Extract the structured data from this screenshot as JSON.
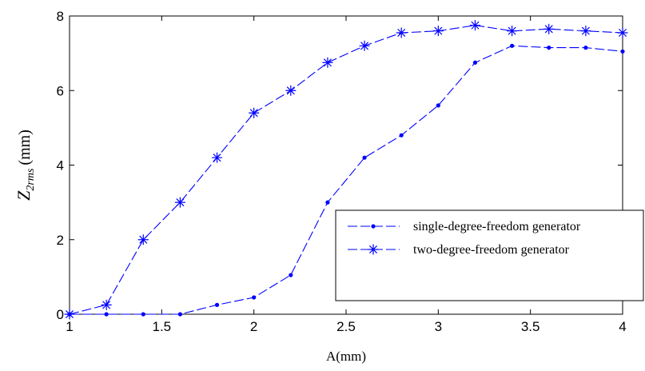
{
  "chart_data": {
    "type": "line",
    "xlabel": "A(mm)",
    "ylabel": {
      "main": "Z",
      "sub": "2rms",
      "unit": "(mm)"
    },
    "xlim": [
      1,
      4
    ],
    "ylim": [
      0,
      8
    ],
    "xticks": [
      "1",
      "1.5",
      "2",
      "2.5",
      "3",
      "3.5",
      "4"
    ],
    "yticks": [
      "0",
      "2",
      "4",
      "6",
      "8"
    ],
    "grid": false,
    "legend_position": "middle-right",
    "line_color": "#0000ff",
    "series": [
      {
        "name": "single-degree-freedom  generator",
        "marker": "dot",
        "x": [
          1,
          1.2,
          1.4,
          1.6,
          1.8,
          2.0,
          2.2,
          2.4,
          2.6,
          2.8,
          3.0,
          3.2,
          3.4,
          3.6,
          3.8,
          4.0
        ],
        "y": [
          0,
          0,
          0,
          0,
          0.25,
          0.45,
          1.05,
          3.0,
          4.2,
          4.8,
          5.6,
          6.75,
          7.2,
          7.15,
          7.15,
          7.05
        ]
      },
      {
        "name": "two-degree-freedom  generator",
        "marker": "star",
        "x": [
          1,
          1.2,
          1.4,
          1.6,
          1.8,
          2.0,
          2.2,
          2.4,
          2.6,
          2.8,
          3.0,
          3.2,
          3.4,
          3.6,
          3.8,
          4.0
        ],
        "y": [
          0,
          0.25,
          2.0,
          3.0,
          4.2,
          5.4,
          6.0,
          6.75,
          7.2,
          7.55,
          7.6,
          7.75,
          7.6,
          7.65,
          7.6,
          7.55
        ]
      }
    ]
  }
}
